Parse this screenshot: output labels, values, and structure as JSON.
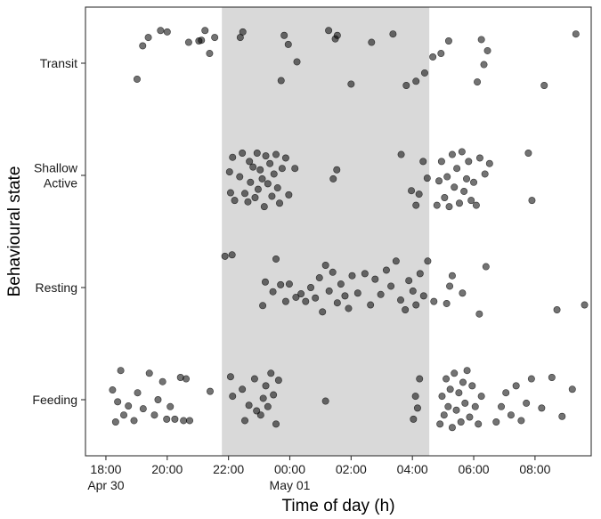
{
  "chart_data": {
    "type": "scatter",
    "xlabel": "Time of day (h)",
    "ylabel": "Behavioural state",
    "x_unit": "hour",
    "xlim": [
      "Apr 30 17:20",
      "May 01 09:50"
    ],
    "x_ticks": [
      {
        "time": "Apr 30 18:00",
        "label": "18:00",
        "sublabel": "Apr 30"
      },
      {
        "time": "Apr 30 20:00",
        "label": "20:00",
        "sublabel": ""
      },
      {
        "time": "Apr 30 22:00",
        "label": "22:00",
        "sublabel": ""
      },
      {
        "time": "May 01 00:00",
        "label": "00:00",
        "sublabel": "May 01"
      },
      {
        "time": "May 01 02:00",
        "label": "02:00",
        "sublabel": ""
      },
      {
        "time": "May 01 04:00",
        "label": "04:00",
        "sublabel": ""
      },
      {
        "time": "May 01 06:00",
        "label": "06:00",
        "sublabel": ""
      },
      {
        "time": "May 01 08:00",
        "label": "08:00",
        "sublabel": ""
      }
    ],
    "categories": [
      "Feeding",
      "Resting",
      "Shallow\nActive",
      "Transit"
    ],
    "shaded_period": {
      "start": "Apr 30 21:47",
      "end": "May 01 04:33",
      "color": "#d9d9d9"
    },
    "point_color": "#000000",
    "point_opacity": 0.55,
    "grid": false,
    "series": [
      {
        "category": "Transit",
        "points": [
          [
            "Apr 30 19:01",
            0.73
          ],
          [
            "Apr 30 19:12",
            0.25
          ],
          [
            "Apr 30 19:23",
            0.13
          ],
          [
            "Apr 30 19:47",
            0.03
          ],
          [
            "Apr 30 20:00",
            0.05
          ],
          [
            "Apr 30 20:42",
            0.2
          ],
          [
            "Apr 30 21:02",
            0.18
          ],
          [
            "Apr 30 21:23",
            0.36
          ],
          [
            "Apr 30 21:33",
            0.13
          ],
          [
            "Apr 30 21:07",
            0.17
          ],
          [
            "Apr 30 21:14",
            0.03
          ],
          [
            "Apr 30 22:23",
            0.13
          ],
          [
            "Apr 30 22:28",
            0.05
          ],
          [
            "Apr 30 23:43",
            0.75
          ],
          [
            "Apr 30 23:49",
            0.1
          ],
          [
            "Apr 30 23:57",
            0.23
          ],
          [
            "May 01 00:14",
            0.48
          ],
          [
            "May 01 01:16",
            0.03
          ],
          [
            "May 01 01:29",
            0.15
          ],
          [
            "May 01 01:33",
            0.1
          ],
          [
            "May 01 02:00",
            0.8
          ],
          [
            "May 01 02:40",
            0.2
          ],
          [
            "May 01 03:22",
            0.08
          ],
          [
            "May 01 03:48",
            0.82
          ],
          [
            "May 01 04:07",
            0.76
          ],
          [
            "May 01 04:24",
            0.64
          ],
          [
            "May 01 04:40",
            0.41
          ],
          [
            "May 01 04:56",
            0.36
          ],
          [
            "May 01 05:11",
            0.18
          ],
          [
            "May 01 06:07",
            0.77
          ],
          [
            "May 01 06:15",
            0.16
          ],
          [
            "May 01 06:20",
            0.52
          ],
          [
            "May 01 06:27",
            0.32
          ],
          [
            "May 01 08:18",
            0.82
          ],
          [
            "May 01 09:20",
            0.08
          ]
        ]
      },
      {
        "category": "Shallow\nActive",
        "points": [
          [
            "Apr 30 22:02",
            0.45
          ],
          [
            "Apr 30 22:04",
            0.75
          ],
          [
            "Apr 30 22:08",
            0.24
          ],
          [
            "Apr 30 22:12",
            0.86
          ],
          [
            "Apr 30 22:22",
            0.52
          ],
          [
            "Apr 30 22:27",
            0.18
          ],
          [
            "Apr 30 22:32",
            0.76
          ],
          [
            "Apr 30 22:38",
            0.88
          ],
          [
            "Apr 30 22:41",
            0.3
          ],
          [
            "Apr 30 22:43",
            0.6
          ],
          [
            "Apr 30 22:48",
            0.38
          ],
          [
            "Apr 30 22:52",
            0.82
          ],
          [
            "Apr 30 22:56",
            0.18
          ],
          [
            "Apr 30 22:58",
            0.7
          ],
          [
            "Apr 30 23:02",
            0.42
          ],
          [
            "Apr 30 23:06",
            0.55
          ],
          [
            "Apr 30 23:10",
            0.95
          ],
          [
            "Apr 30 23:13",
            0.22
          ],
          [
            "Apr 30 23:17",
            0.62
          ],
          [
            "Apr 30 23:21",
            0.33
          ],
          [
            "Apr 30 23:25",
            0.8
          ],
          [
            "Apr 30 23:29",
            0.48
          ],
          [
            "Apr 30 23:33",
            0.2
          ],
          [
            "Apr 30 23:36",
            0.68
          ],
          [
            "Apr 30 23:40",
            0.9
          ],
          [
            "Apr 30 23:45",
            0.4
          ],
          [
            "Apr 30 23:52",
            0.25
          ],
          [
            "Apr 30 23:58",
            0.78
          ],
          [
            "May 01 00:10",
            0.4
          ],
          [
            "May 01 01:25",
            0.55
          ],
          [
            "May 01 01:32",
            0.42
          ],
          [
            "May 01 03:38",
            0.2
          ],
          [
            "May 01 03:58",
            0.72
          ],
          [
            "May 01 04:07",
            0.93
          ],
          [
            "May 01 04:13",
            0.77
          ],
          [
            "May 01 04:21",
            0.3
          ],
          [
            "May 01 04:29",
            0.54
          ],
          [
            "May 01 04:48",
            0.93
          ],
          [
            "May 01 04:52",
            0.58
          ],
          [
            "May 01 04:57",
            0.3
          ],
          [
            "May 01 05:03",
            0.82
          ],
          [
            "May 01 05:08",
            0.52
          ],
          [
            "May 01 05:12",
            0.95
          ],
          [
            "May 01 05:18",
            0.2
          ],
          [
            "May 01 05:22",
            0.67
          ],
          [
            "May 01 05:27",
            0.4
          ],
          [
            "May 01 05:32",
            0.9
          ],
          [
            "May 01 05:37",
            0.16
          ],
          [
            "May 01 05:41",
            0.73
          ],
          [
            "May 01 05:46",
            0.55
          ],
          [
            "May 01 05:50",
            0.3
          ],
          [
            "May 01 05:55",
            0.86
          ],
          [
            "May 01 06:00",
            0.6
          ],
          [
            "May 01 06:05",
            0.93
          ],
          [
            "May 01 06:12",
            0.25
          ],
          [
            "May 01 06:22",
            0.48
          ],
          [
            "May 01 06:31",
            0.33
          ],
          [
            "May 01 07:47",
            0.18
          ],
          [
            "May 01 07:54",
            0.86
          ]
        ]
      },
      {
        "category": "Resting",
        "points": [
          [
            "Apr 30 21:53",
            0.05
          ],
          [
            "Apr 30 22:07",
            0.03
          ],
          [
            "Apr 30 23:07",
            0.76
          ],
          [
            "Apr 30 23:12",
            0.42
          ],
          [
            "Apr 30 23:27",
            0.56
          ],
          [
            "Apr 30 23:33",
            0.09
          ],
          [
            "Apr 30 23:42",
            0.46
          ],
          [
            "Apr 30 23:52",
            0.7
          ],
          [
            "Apr 30 23:59",
            0.45
          ],
          [
            "May 01 00:12",
            0.64
          ],
          [
            "May 01 00:22",
            0.59
          ],
          [
            "May 01 00:31",
            0.7
          ],
          [
            "May 01 00:41",
            0.5
          ],
          [
            "May 01 00:50",
            0.65
          ],
          [
            "May 01 00:58",
            0.36
          ],
          [
            "May 01 01:04",
            0.85
          ],
          [
            "May 01 01:10",
            0.18
          ],
          [
            "May 01 01:17",
            0.55
          ],
          [
            "May 01 01:24",
            0.28
          ],
          [
            "May 01 01:33",
            0.72
          ],
          [
            "May 01 01:40",
            0.45
          ],
          [
            "May 01 01:48",
            0.62
          ],
          [
            "May 01 01:55",
            0.8
          ],
          [
            "May 01 02:02",
            0.33
          ],
          [
            "May 01 02:13",
            0.58
          ],
          [
            "May 01 02:27",
            0.3
          ],
          [
            "May 01 02:38",
            0.75
          ],
          [
            "May 01 02:47",
            0.38
          ],
          [
            "May 01 02:58",
            0.6
          ],
          [
            "May 01 03:09",
            0.25
          ],
          [
            "May 01 03:18",
            0.48
          ],
          [
            "May 01 03:28",
            0.12
          ],
          [
            "May 01 03:37",
            0.68
          ],
          [
            "May 01 03:46",
            0.82
          ],
          [
            "May 01 03:53",
            0.4
          ],
          [
            "May 01 04:01",
            0.55
          ],
          [
            "May 01 04:07",
            0.75
          ],
          [
            "May 01 04:15",
            0.3
          ],
          [
            "May 01 04:22",
            0.62
          ],
          [
            "May 01 04:30",
            0.12
          ],
          [
            "May 01 04:42",
            0.7
          ],
          [
            "May 01 05:07",
            0.73
          ],
          [
            "May 01 05:13",
            0.48
          ],
          [
            "May 01 05:18",
            0.33
          ],
          [
            "May 01 05:38",
            0.58
          ],
          [
            "May 01 06:11",
            0.88
          ],
          [
            "May 01 06:24",
            0.2
          ],
          [
            "May 01 08:43",
            0.82
          ],
          [
            "May 01 09:37",
            0.75
          ]
        ]
      },
      {
        "category": "Feeding",
        "points": [
          [
            "Apr 30 18:13",
            0.36
          ],
          [
            "Apr 30 18:19",
            0.82
          ],
          [
            "Apr 30 18:23",
            0.53
          ],
          [
            "Apr 30 18:29",
            0.08
          ],
          [
            "Apr 30 18:35",
            0.72
          ],
          [
            "Apr 30 18:44",
            0.59
          ],
          [
            "Apr 30 18:55",
            0.8
          ],
          [
            "Apr 30 19:02",
            0.4
          ],
          [
            "Apr 30 19:13",
            0.63
          ],
          [
            "Apr 30 19:25",
            0.12
          ],
          [
            "Apr 30 19:35",
            0.72
          ],
          [
            "Apr 30 19:42",
            0.5
          ],
          [
            "Apr 30 19:51",
            0.24
          ],
          [
            "Apr 30 19:59",
            0.78
          ],
          [
            "Apr 30 20:06",
            0.6
          ],
          [
            "Apr 30 20:15",
            0.78
          ],
          [
            "Apr 30 20:26",
            0.18
          ],
          [
            "Apr 30 20:32",
            0.8
          ],
          [
            "Apr 30 20:37",
            0.2
          ],
          [
            "Apr 30 20:44",
            0.8
          ],
          [
            "Apr 30 21:24",
            0.38
          ],
          [
            "Apr 30 22:04",
            0.17
          ],
          [
            "Apr 30 22:08",
            0.45
          ],
          [
            "Apr 30 22:27",
            0.35
          ],
          [
            "Apr 30 22:32",
            0.8
          ],
          [
            "Apr 30 22:40",
            0.58
          ],
          [
            "Apr 30 22:51",
            0.2
          ],
          [
            "Apr 30 22:55",
            0.66
          ],
          [
            "Apr 30 23:03",
            0.72
          ],
          [
            "Apr 30 23:08",
            0.48
          ],
          [
            "Apr 30 23:13",
            0.3
          ],
          [
            "Apr 30 23:17",
            0.6
          ],
          [
            "Apr 30 23:23",
            0.12
          ],
          [
            "Apr 30 23:28",
            0.43
          ],
          [
            "Apr 30 23:33",
            0.85
          ],
          [
            "Apr 30 23:38",
            0.22
          ],
          [
            "May 01 01:10",
            0.52
          ],
          [
            "May 01 04:02",
            0.78
          ],
          [
            "May 01 04:06",
            0.45
          ],
          [
            "May 01 04:10",
            0.62
          ],
          [
            "May 01 04:14",
            0.2
          ],
          [
            "May 01 04:54",
            0.85
          ],
          [
            "May 01 04:58",
            0.45
          ],
          [
            "May 01 05:02",
            0.72
          ],
          [
            "May 01 05:06",
            0.2
          ],
          [
            "May 01 05:10",
            0.6
          ],
          [
            "May 01 05:14",
            0.35
          ],
          [
            "May 01 05:18",
            0.9
          ],
          [
            "May 01 05:22",
            0.12
          ],
          [
            "May 01 05:26",
            0.65
          ],
          [
            "May 01 05:31",
            0.4
          ],
          [
            "May 01 05:35",
            0.82
          ],
          [
            "May 01 05:39",
            0.25
          ],
          [
            "May 01 05:43",
            0.55
          ],
          [
            "May 01 05:47",
            0.08
          ],
          [
            "May 01 05:52",
            0.75
          ],
          [
            "May 01 05:57",
            0.3
          ],
          [
            "May 01 06:03",
            0.6
          ],
          [
            "May 01 06:09",
            0.85
          ],
          [
            "May 01 06:15",
            0.45
          ],
          [
            "May 01 06:44",
            0.82
          ],
          [
            "May 01 06:54",
            0.6
          ],
          [
            "May 01 07:03",
            0.4
          ],
          [
            "May 01 07:13",
            0.72
          ],
          [
            "May 01 07:23",
            0.3
          ],
          [
            "May 01 07:33",
            0.8
          ],
          [
            "May 01 07:43",
            0.55
          ],
          [
            "May 01 07:53",
            0.2
          ],
          [
            "May 01 08:13",
            0.62
          ],
          [
            "May 01 08:33",
            0.18
          ],
          [
            "May 01 08:53",
            0.74
          ],
          [
            "May 01 09:13",
            0.35
          ]
        ]
      }
    ]
  }
}
